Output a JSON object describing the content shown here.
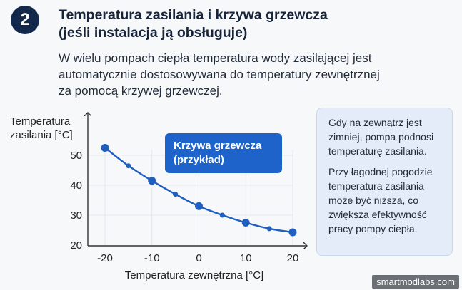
{
  "step": {
    "number": "2"
  },
  "header": {
    "title_line1": "Temperatura zasilania i krzywa grzewcza",
    "title_line2": "(jeśli instalacja ją obsługuje)"
  },
  "intro": {
    "line1": "W wielu pompach ciepła temperatura wody zasilającej jest",
    "line2": "automatycznie dostosowywana do temperatury zewnętrznej",
    "line3": "za pomocą krzywej grzewczej."
  },
  "callout": {
    "line1": "Krzywa grzewcza",
    "line2": "(przykład)"
  },
  "info": {
    "para1_line1": "Gdy na zewnątrz jest",
    "para1_line2": "zimniej, pompa podnosi",
    "para1_line3": "temperaturę zasilania.",
    "para2_line1": "Przy łagodnej pogodzie",
    "para2_line2": "temperatura zasilania",
    "para2_line3": "może być niższa, co",
    "para2_line4": "zwiększa efektywność",
    "para2_line5": "pracy pompy ciepła."
  },
  "watermark": "smartmodlabs.com",
  "chart_data": {
    "type": "line",
    "title": "",
    "ylabel_line1": "Temperatura",
    "ylabel_line2": "zasilania [°C]",
    "xlabel": "Temperatura zewnętrzna [°C]",
    "x_ticks": [
      -20,
      -10,
      0,
      10,
      20
    ],
    "y_ticks": [
      20,
      30,
      40,
      50
    ],
    "xlim": [
      -24,
      22
    ],
    "ylim": [
      20,
      56
    ],
    "grid": false,
    "line_color": "#1f5fbf",
    "series": [
      {
        "x": [
          -20,
          -15,
          -10,
          -5,
          0,
          5,
          10,
          15,
          20
        ],
        "y": [
          52.5,
          46.5,
          41.5,
          37.0,
          33.0,
          30.0,
          27.5,
          25.5,
          24.3
        ],
        "large_marker_x": [
          -20,
          -10,
          0,
          10,
          20
        ]
      }
    ]
  }
}
